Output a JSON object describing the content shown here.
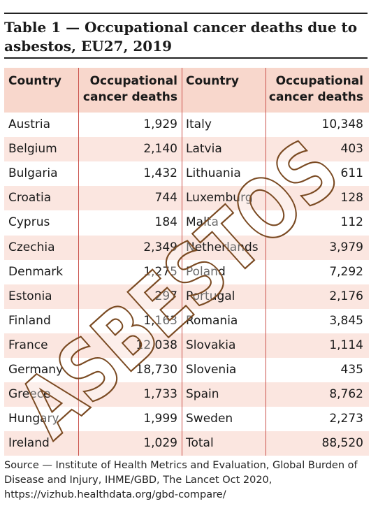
{
  "title": "Table 1 — Occupational cancer deaths due to asbestos, EU27, 2019",
  "table": {
    "headers": [
      "Country",
      "Occupational cancer deaths",
      "Country",
      "Occupational cancer deaths"
    ],
    "rows": [
      [
        "Austria",
        "1,929",
        "Italy",
        "10,348"
      ],
      [
        "Belgium",
        "2,140",
        "Latvia",
        "403"
      ],
      [
        "Bulgaria",
        "1,432",
        "Lithuania",
        "611"
      ],
      [
        "Croatia",
        "744",
        "Luxemburg",
        "128"
      ],
      [
        "Cyprus",
        "184",
        "Malta",
        "112"
      ],
      [
        "Czechia",
        "2,349",
        "Netherlands",
        "3,979"
      ],
      [
        "Denmark",
        "1,275",
        "Poland",
        "7,292"
      ],
      [
        "Estonia",
        "297",
        "Portugal",
        "2,176"
      ],
      [
        "Finland",
        "1,163",
        "Romania",
        "3,845"
      ],
      [
        "France",
        "12,038",
        "Slovakia",
        "1,114"
      ],
      [
        "Germany",
        "18,730",
        "Slovenia",
        "435"
      ],
      [
        "Greece",
        "1,733",
        "Spain",
        "8,762"
      ],
      [
        "Hungary",
        "1,999",
        "Sweden",
        "2,273"
      ],
      [
        "Ireland",
        "1,029",
        "Total",
        "88,520"
      ]
    ]
  },
  "source": "Source — Institute of Health Metrics and Evaluation, Global Burden of Disease and Injury, IHME/GBD, The Lancet Oct 2020, https://vizhub.healthdata.org/gbd-compare/",
  "watermark": "ASBESTOS"
}
